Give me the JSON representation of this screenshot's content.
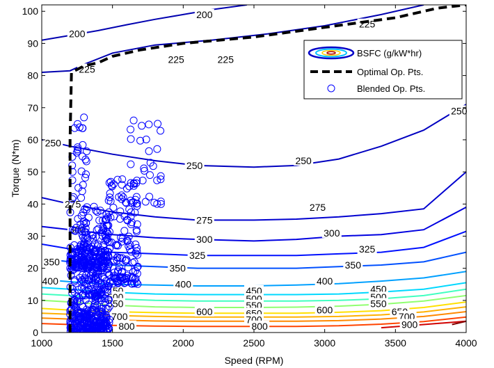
{
  "chart_data": {
    "type": "line",
    "xlabel": "Speed (RPM)",
    "ylabel": "Torque (N*m)",
    "xlim": [
      1000,
      4000
    ],
    "ylim": [
      0,
      102
    ],
    "xticks": [
      1000,
      1500,
      2000,
      2500,
      3000,
      3500,
      4000
    ],
    "yticks": [
      0,
      10,
      20,
      30,
      40,
      50,
      60,
      70,
      80,
      90,
      100
    ],
    "grid": false,
    "legend_position": "top-right",
    "legend": [
      "BSFC (g/kW*hr)",
      "Optimal Op. Pts.",
      "Blended Op. Pts."
    ],
    "series": [
      {
        "name": "BSFC (g/kW*hr)",
        "style": "contour"
      },
      {
        "name": "Optimal Op. Pts.",
        "style": "dashed",
        "x": [
          1200,
          1200,
          1210,
          1300,
          1400,
          1500,
          1700,
          2000,
          2500,
          3000,
          3500,
          3800,
          4000
        ],
        "y": [
          0,
          60,
          81,
          83,
          84,
          86,
          88,
          90,
          92,
          95,
          98,
          101,
          102
        ]
      },
      {
        "name": "Blended Op. Pts.",
        "style": "scatter"
      }
    ],
    "contours": [
      {
        "level": "200",
        "color": "#0000b0",
        "x": [
          1000,
          1200,
          1400,
          1600,
          1800,
          2000,
          2200,
          2450
        ],
        "y": [
          91,
          92.5,
          94,
          95.8,
          97.5,
          99,
          100.5,
          102
        ],
        "labels": [
          {
            "text": "200",
            "x": 1250,
            "y": 93
          },
          {
            "text": "200",
            "x": 2150,
            "y": 99
          }
        ]
      },
      {
        "level": "225",
        "color": "#0000b0",
        "x": [
          1000,
          1200,
          1300,
          1500,
          1800,
          2200,
          2600,
          3000,
          3400,
          3700
        ],
        "y": [
          81,
          81.5,
          83.5,
          87,
          89.5,
          91,
          93,
          95.5,
          99,
          102
        ],
        "labels": [
          {
            "text": "225",
            "x": 1320,
            "y": 82
          },
          {
            "text": "225",
            "x": 1950,
            "y": 85
          },
          {
            "text": "225",
            "x": 2300,
            "y": 85
          },
          {
            "text": "225",
            "x": 3300,
            "y": 96
          }
        ]
      },
      {
        "level": "250",
        "color": "#0000c0",
        "x": [
          1000,
          1200,
          1500,
          1800,
          2100,
          2500,
          2800,
          3100,
          3400,
          3700,
          4000
        ],
        "y": [
          60,
          58,
          55.5,
          53.5,
          52,
          51.5,
          52,
          54,
          58,
          63,
          71
        ],
        "labels": [
          {
            "text": "250",
            "x": 1080,
            "y": 59
          },
          {
            "text": "250",
            "x": 2080,
            "y": 52
          },
          {
            "text": "250",
            "x": 2850,
            "y": 53.5
          },
          {
            "text": "250",
            "x": 3950,
            "y": 69
          }
        ]
      },
      {
        "level": "275",
        "color": "#0000d0",
        "x": [
          1000,
          1200,
          1500,
          1800,
          2100,
          2500,
          2800,
          3100,
          3400,
          3700,
          4000
        ],
        "y": [
          42,
          40,
          37.5,
          36,
          35,
          35,
          35.3,
          36,
          37,
          38.5,
          50
        ],
        "labels": [
          {
            "text": "275",
            "x": 1220,
            "y": 40
          },
          {
            "text": "275",
            "x": 2150,
            "y": 35
          },
          {
            "text": "275",
            "x": 2950,
            "y": 39
          }
        ]
      },
      {
        "level": "300",
        "color": "#0000e0",
        "x": [
          1000,
          1200,
          1500,
          1800,
          2100,
          2500,
          2800,
          3100,
          3400,
          3700,
          4000
        ],
        "y": [
          33,
          32,
          30.5,
          29.5,
          29,
          28.5,
          29,
          30,
          30.5,
          32,
          39
        ],
        "labels": [
          {
            "text": "300",
            "x": 1250,
            "y": 32
          },
          {
            "text": "300",
            "x": 2150,
            "y": 29
          },
          {
            "text": "300",
            "x": 3050,
            "y": 31
          }
        ]
      },
      {
        "level": "325",
        "color": "#0010ff",
        "x": [
          1000,
          1200,
          1500,
          1800,
          2100,
          2500,
          2800,
          3100,
          3400,
          3700,
          4000
        ],
        "y": [
          27.5,
          26,
          25,
          24.5,
          24,
          24,
          24,
          24.5,
          25,
          26.5,
          31.5
        ],
        "labels": [
          {
            "text": "325",
            "x": 2100,
            "y": 24
          },
          {
            "text": "325",
            "x": 3300,
            "y": 26
          }
        ]
      },
      {
        "level": "350",
        "color": "#0050ff",
        "x": [
          1000,
          1200,
          1500,
          1800,
          2100,
          2500,
          2800,
          3100,
          3400,
          3700,
          4000
        ],
        "y": [
          23,
          22,
          21,
          20.5,
          20,
          20,
          20,
          20.5,
          21,
          22,
          25
        ],
        "labels": [
          {
            "text": "350",
            "x": 1070,
            "y": 22
          },
          {
            "text": "350",
            "x": 1960,
            "y": 20
          },
          {
            "text": "350",
            "x": 3200,
            "y": 21
          }
        ]
      },
      {
        "level": "400",
        "color": "#00a0ff",
        "x": [
          1000,
          1200,
          1500,
          1800,
          2100,
          2500,
          2800,
          3100,
          3400,
          3700,
          4000
        ],
        "y": [
          16.5,
          15.8,
          15,
          14.8,
          14.5,
          14.5,
          14.8,
          15.2,
          16,
          17,
          19
        ],
        "labels": [
          {
            "text": "400",
            "x": 1060,
            "y": 16
          },
          {
            "text": "400",
            "x": 2000,
            "y": 15
          },
          {
            "text": "400",
            "x": 3000,
            "y": 16
          }
        ]
      },
      {
        "level": "450",
        "color": "#00d8ff",
        "x": [
          1000,
          1200,
          1500,
          1800,
          2100,
          2500,
          2800,
          3100,
          3400,
          3700,
          4000
        ],
        "y": [
          14,
          13.5,
          12.5,
          12,
          11.8,
          11.8,
          11.8,
          12,
          12.6,
          13.5,
          15.5
        ],
        "labels": [
          {
            "text": "450",
            "x": 1520,
            "y": 13
          },
          {
            "text": "450",
            "x": 2500,
            "y": 13
          },
          {
            "text": "450",
            "x": 3380,
            "y": 13.5
          }
        ]
      },
      {
        "level": "500",
        "color": "#40ffc0",
        "x": [
          1000,
          1200,
          1500,
          1800,
          2100,
          2500,
          2800,
          3100,
          3400,
          3700,
          4000
        ],
        "y": [
          12,
          11.5,
          10.5,
          10,
          9.8,
          9.8,
          9.8,
          10,
          10.5,
          11.5,
          13.5
        ],
        "labels": [
          {
            "text": "500",
            "x": 1520,
            "y": 11
          },
          {
            "text": "500",
            "x": 2500,
            "y": 10.5
          },
          {
            "text": "500",
            "x": 3380,
            "y": 11
          }
        ]
      },
      {
        "level": "550",
        "color": "#90ff70",
        "x": [
          1000,
          1200,
          1500,
          1800,
          2100,
          2500,
          2800,
          3100,
          3400,
          3700,
          4000
        ],
        "y": [
          10,
          9.5,
          8.5,
          8,
          7.8,
          7.8,
          7.9,
          8.2,
          8.8,
          9.8,
          11.5
        ],
        "labels": [
          {
            "text": "550",
            "x": 1520,
            "y": 9
          },
          {
            "text": "550",
            "x": 2500,
            "y": 8.5
          },
          {
            "text": "550",
            "x": 3380,
            "y": 9
          }
        ]
      },
      {
        "level": "600",
        "color": "#ffe000",
        "x": [
          1000,
          1200,
          1500,
          1800,
          2100,
          2500,
          2800,
          3100,
          3400,
          3700,
          4000
        ],
        "y": [
          7.5,
          7,
          6.5,
          6.2,
          6,
          6,
          6,
          6.3,
          6.8,
          7.8,
          9.5
        ],
        "labels": [
          {
            "text": "600",
            "x": 2150,
            "y": 6.5
          },
          {
            "text": "600",
            "x": 3000,
            "y": 7
          }
        ]
      },
      {
        "level": "650",
        "color": "#ffb000",
        "x": [
          1000,
          1200,
          1500,
          1800,
          2100,
          2500,
          2800,
          3100,
          3400,
          3700,
          4000
        ],
        "y": [
          6,
          5.7,
          5.3,
          5,
          4.8,
          4.8,
          4.8,
          5,
          5.5,
          6.4,
          8
        ],
        "labels": [
          {
            "text": "650",
            "x": 2500,
            "y": 6
          },
          {
            "text": "650",
            "x": 3530,
            "y": 6.5
          }
        ]
      },
      {
        "level": "700",
        "color": "#ff8800",
        "x": [
          1000,
          1200,
          1500,
          1800,
          2100,
          2500,
          2800,
          3100,
          3400,
          3700,
          4000
        ],
        "y": [
          4.5,
          4.2,
          3.9,
          3.6,
          3.5,
          3.5,
          3.5,
          3.7,
          4.2,
          5,
          6.5
        ],
        "labels": [
          {
            "text": "700",
            "x": 1550,
            "y": 5
          },
          {
            "text": "700",
            "x": 2500,
            "y": 4
          },
          {
            "text": "700",
            "x": 3580,
            "y": 5
          }
        ]
      },
      {
        "level": "800",
        "color": "#ff4400",
        "x": [
          1000,
          1200,
          1500,
          1800,
          2100,
          2500,
          2800,
          3100,
          3400,
          3700,
          4000
        ],
        "y": [
          2.8,
          2.5,
          2.2,
          2,
          1.9,
          1.9,
          1.9,
          2.1,
          2.6,
          3.4,
          4.8
        ],
        "labels": [
          {
            "text": "800",
            "x": 1600,
            "y": 2
          },
          {
            "text": "800",
            "x": 2540,
            "y": 2
          }
        ]
      },
      {
        "level": "900",
        "color": "#d00000",
        "x": [
          3400,
          3700,
          4000
        ],
        "y": [
          1.5,
          2.5,
          3.5
        ],
        "labels": [
          {
            "text": "900",
            "x": 3600,
            "y": 2.5
          }
        ]
      },
      {
        "level": "1000",
        "color": "#800000",
        "x": [
          3900,
          4000
        ],
        "y": [
          2.5,
          3.5
        ],
        "labels": []
      }
    ],
    "scatter_clusters": [
      {
        "xmin": 1200,
        "xmax": 1480,
        "ymin": 0,
        "ymax": 25,
        "n": 420
      },
      {
        "xmin": 1200,
        "xmax": 1320,
        "ymin": 20,
        "ymax": 68,
        "n": 90
      },
      {
        "xmin": 1280,
        "xmax": 1480,
        "ymin": 20,
        "ymax": 38,
        "n": 120
      },
      {
        "xmin": 1450,
        "xmax": 1680,
        "ymin": 15,
        "ymax": 48,
        "n": 140
      },
      {
        "xmin": 1600,
        "xmax": 1850,
        "ymin": 40,
        "ymax": 65,
        "n": 30
      }
    ]
  }
}
